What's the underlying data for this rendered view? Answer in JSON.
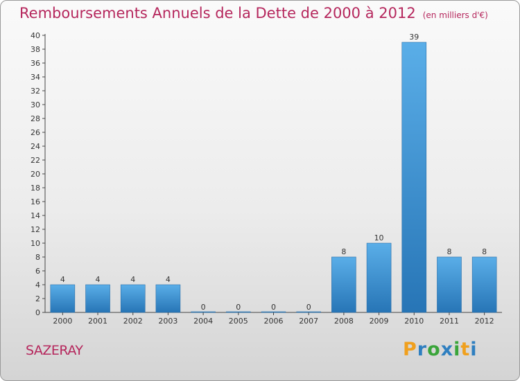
{
  "chart_data": {
    "type": "bar",
    "title": "Remboursements Annuels de la Dette de 2000 à 2012",
    "unit_note": "(en milliers d'€)",
    "categories": [
      "2000",
      "2001",
      "2002",
      "2003",
      "2004",
      "2005",
      "2006",
      "2007",
      "2008",
      "2009",
      "2010",
      "2011",
      "2012"
    ],
    "values": [
      4,
      4,
      4,
      4,
      0,
      0,
      0,
      0,
      8,
      10,
      39,
      8,
      8
    ],
    "ylim": [
      0,
      40
    ],
    "yticks": [
      0,
      2,
      4,
      6,
      8,
      10,
      12,
      14,
      16,
      18,
      20,
      22,
      24,
      26,
      28,
      30,
      32,
      34,
      36,
      38,
      40
    ],
    "grid": false,
    "legend": "none",
    "bar_color": "#3d8fd4"
  },
  "commune": "SAZERAY",
  "logo": {
    "letters": [
      "P",
      "r",
      "o",
      "x",
      "i",
      "t",
      "i"
    ],
    "colors": [
      "#f0a01e",
      "#2f7fc0",
      "#3aa53a",
      "#2f7fc0",
      "#3aa53a",
      "#f0a01e",
      "#2f7fc0"
    ]
  }
}
